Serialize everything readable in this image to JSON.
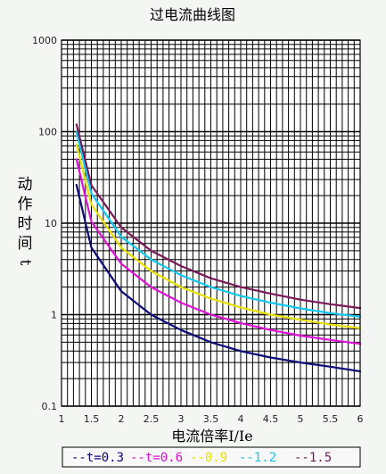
{
  "chart_data": {
    "type": "line",
    "title": "过电流曲线图",
    "xlabel": "电流倍率I/Ie",
    "ylabel_chars": [
      "动",
      "作",
      "时",
      "间",
      "t"
    ],
    "x_scale": "linear",
    "y_scale": "log",
    "xlim": [
      1,
      6
    ],
    "ylim": [
      0.1,
      1000
    ],
    "x_ticks": [
      "1",
      "1.5",
      "2",
      "2.5",
      "3",
      "3.5",
      "4",
      "4.5",
      "5",
      "5.5",
      "6"
    ],
    "y_ticks": [
      "0.1",
      "1",
      "10",
      "100",
      "1000"
    ],
    "grid": true,
    "legend_position": "bottom",
    "series": [
      {
        "name": "t=0.3",
        "legend_label": "--t=0.3",
        "color": "#0a0a7a",
        "x": [
          1.25,
          1.5,
          2,
          2.5,
          3,
          3.5,
          4,
          4.5,
          5,
          5.5,
          6
        ],
        "y": [
          26.2,
          5.4,
          1.8,
          1.0,
          0.68,
          0.5,
          0.4,
          0.34,
          0.3,
          0.27,
          0.24
        ]
      },
      {
        "name": "t=0.6",
        "legend_label": "--t=0.6",
        "color": "#e010d8",
        "x": [
          1.25,
          1.5,
          2,
          2.5,
          3,
          3.5,
          4,
          4.5,
          5,
          5.5,
          6
        ],
        "y": [
          50,
          10.4,
          3.6,
          2.0,
          1.35,
          1.0,
          0.81,
          0.68,
          0.59,
          0.53,
          0.48
        ]
      },
      {
        "name": "0.9",
        "legend_label": "--0.9",
        "color": "#e8e000",
        "x": [
          1.25,
          1.5,
          2,
          2.5,
          3,
          3.5,
          4,
          4.5,
          5,
          5.5,
          6
        ],
        "y": [
          73,
          16,
          5.4,
          3.0,
          2.0,
          1.5,
          1.2,
          1.0,
          0.88,
          0.78,
          0.71
        ]
      },
      {
        "name": "1.2",
        "legend_label": "--1.2",
        "color": "#10c8f0",
        "x": [
          1.25,
          1.5,
          2,
          2.5,
          3,
          3.5,
          4,
          4.5,
          5,
          5.5,
          6
        ],
        "y": [
          99,
          21.2,
          7.1,
          4.0,
          2.7,
          2.0,
          1.6,
          1.35,
          1.17,
          1.04,
          0.95
        ]
      },
      {
        "name": "1.5",
        "legend_label": "--1.5",
        "color": "#7a1a5a",
        "x": [
          1.25,
          1.5,
          2,
          2.5,
          3,
          3.5,
          4,
          4.5,
          5,
          5.5,
          6
        ],
        "y": [
          120,
          26,
          9,
          5.0,
          3.4,
          2.5,
          2.0,
          1.7,
          1.46,
          1.3,
          1.18
        ]
      }
    ]
  }
}
